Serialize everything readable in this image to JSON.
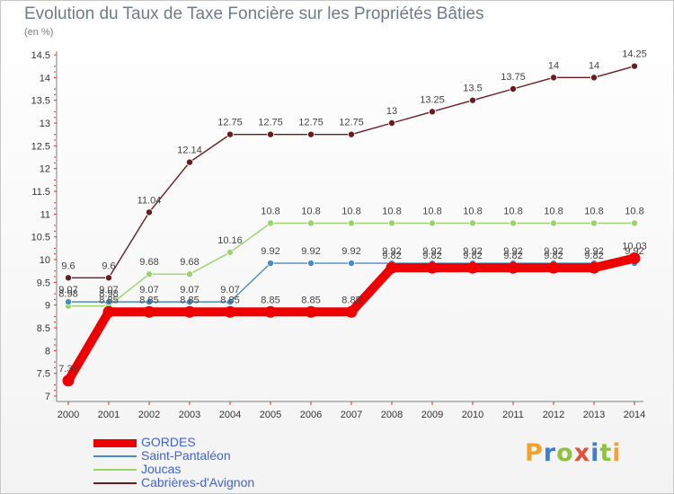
{
  "chart_data": {
    "type": "line",
    "title": "Evolution du Taux de Taxe Foncière sur les Propriétés Bâties",
    "ylabel": "(en %)",
    "xlabel": "",
    "categories": [
      "2000",
      "2001",
      "2002",
      "2003",
      "2004",
      "2005",
      "2006",
      "2007",
      "2008",
      "2009",
      "2010",
      "2011",
      "2012",
      "2013",
      "2014"
    ],
    "ylim": [
      7,
      14.5
    ],
    "yticks": [
      "7",
      "7.5",
      "8",
      "8.5",
      "9",
      "9.5",
      "10",
      "10.5",
      "11",
      "11.5",
      "12",
      "12.5",
      "13",
      "13.5",
      "14",
      "14.5"
    ],
    "series": [
      {
        "name": "Cabrières-d'Avignon",
        "color": "#6b1a1f",
        "values": [
          9.6,
          9.6,
          11.04,
          12.14,
          12.75,
          12.75,
          12.75,
          12.75,
          13,
          13.25,
          13.5,
          13.75,
          14,
          14,
          14.25
        ],
        "labels": [
          "9.6",
          "9.6",
          "11.04",
          "12.14",
          "12.75",
          "12.75",
          "12.75",
          "12.75",
          "13",
          "13.25",
          "13.5",
          "13.75",
          "14",
          "14",
          "14.25"
        ]
      },
      {
        "name": "Joucas",
        "color": "#9ad36c",
        "values": [
          8.98,
          8.98,
          9.68,
          9.68,
          10.16,
          10.8,
          10.8,
          10.8,
          10.8,
          10.8,
          10.8,
          10.8,
          10.8,
          10.8,
          10.8
        ],
        "labels": [
          "8.98",
          "8.98",
          "9.68",
          "9.68",
          "10.16",
          "10.8",
          "10.8",
          "10.8",
          "10.8",
          "10.8",
          "10.8",
          "10.8",
          "10.8",
          "10.8",
          "10.8"
        ]
      },
      {
        "name": "Saint-Pantaléon",
        "color": "#4a8cc2",
        "values": [
          9.07,
          9.07,
          9.07,
          9.07,
          9.07,
          9.92,
          9.92,
          9.92,
          9.92,
          9.92,
          9.92,
          9.92,
          9.92,
          9.92,
          9.92
        ],
        "labels": [
          "9.07",
          "9.07",
          "9.07",
          "9.07",
          "9.07",
          "9.92",
          "9.92",
          "9.92",
          "9.92",
          "9.92",
          "9.92",
          "9.92",
          "9.92",
          "9.92",
          "9.92"
        ]
      },
      {
        "name": "GORDES",
        "color": "#ee0000",
        "values": [
          7.34,
          8.85,
          8.85,
          8.85,
          8.85,
          8.85,
          8.85,
          8.85,
          9.82,
          9.82,
          9.82,
          9.82,
          9.82,
          9.82,
          10.03
        ],
        "labels": [
          "7.34",
          "8.85",
          "8.85",
          "8.85",
          "8.85",
          "8.85",
          "8.85",
          "8.85",
          "9.82",
          "9.82",
          "9.82",
          "9.82",
          "9.82",
          "9.82",
          "10.03"
        ]
      }
    ]
  },
  "legend": [
    {
      "label": "GORDES",
      "color": "#ee0000"
    },
    {
      "label": "Saint-Pantaléon",
      "color": "#4a8cc2"
    },
    {
      "label": "Joucas",
      "color": "#9ad36c"
    },
    {
      "label": "Cabrières-d'Avignon",
      "color": "#6b1a1f"
    }
  ],
  "logo": {
    "text": "Proxiti"
  }
}
